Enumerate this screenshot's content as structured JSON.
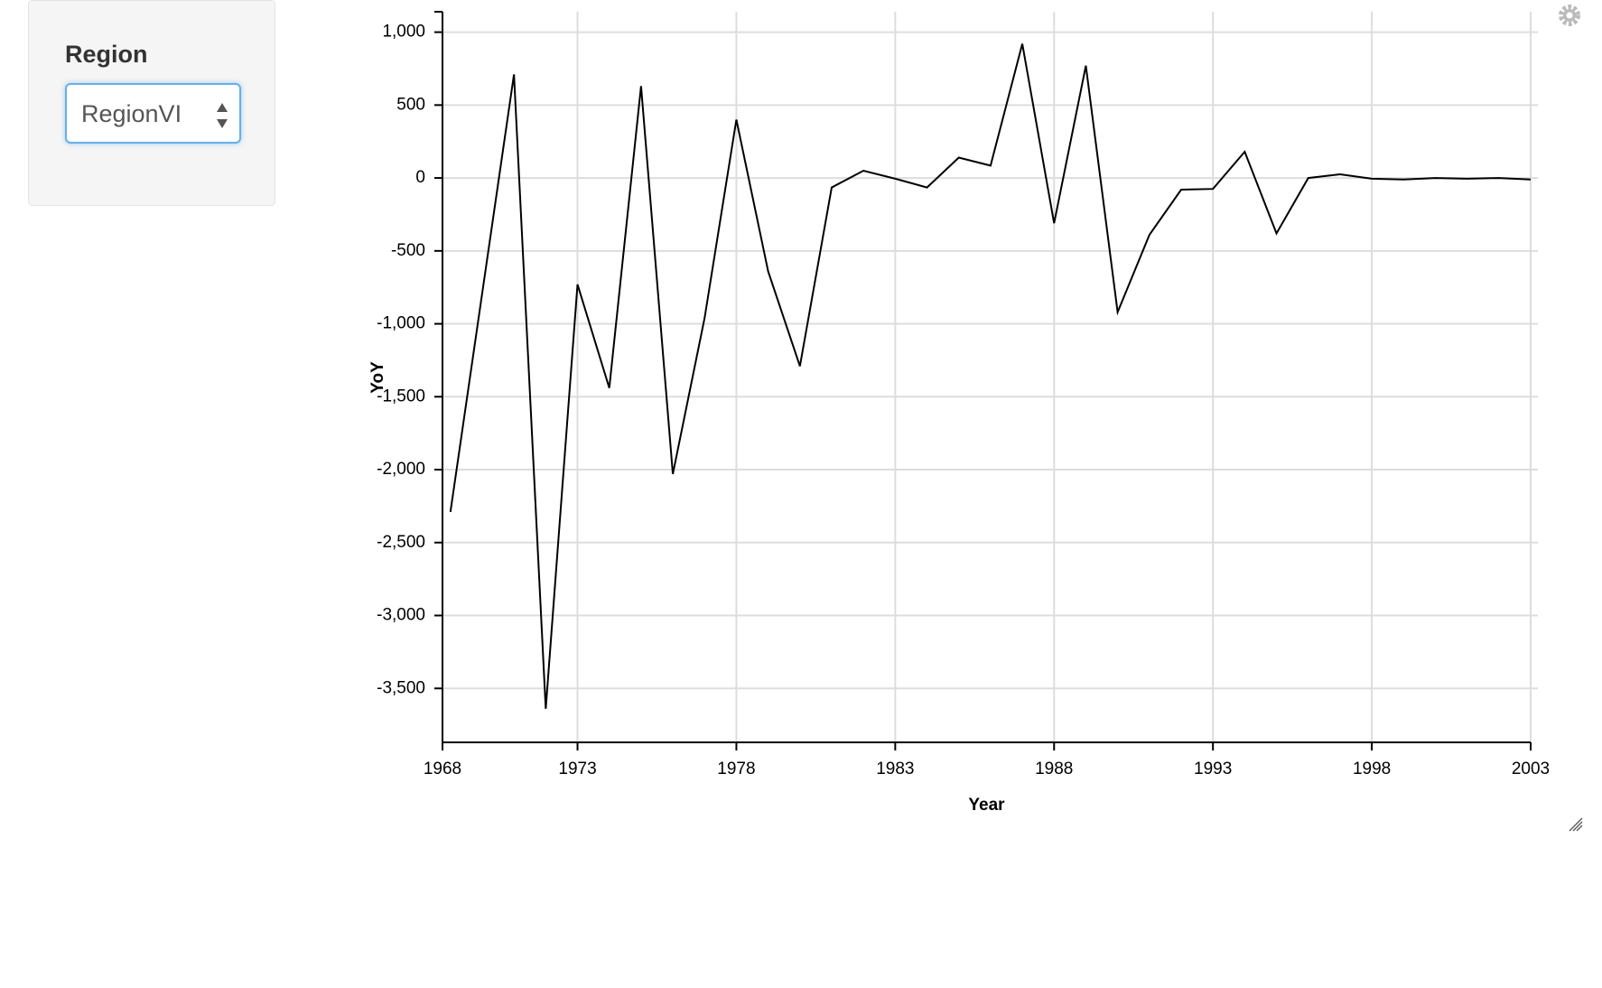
{
  "sidebar": {
    "label": "Region",
    "select_value": "RegionVI"
  },
  "chart_data": {
    "type": "line",
    "xlabel": "Year",
    "ylabel": "YoY",
    "x": [
      1969,
      1970,
      1971,
      1972,
      1973,
      1974,
      1975,
      1976,
      1977,
      1978,
      1979,
      1980,
      1981,
      1982,
      1983,
      1984,
      1985,
      1986,
      1987,
      1988,
      1989,
      1990,
      1991,
      1992,
      1993,
      1994,
      1995,
      1996,
      1997,
      1998,
      1999,
      2000,
      2001,
      2002,
      2003
    ],
    "values": [
      -2290,
      -790,
      710,
      -3640,
      -730,
      -1440,
      630,
      -2030,
      -960,
      400,
      -640,
      -1290,
      -65,
      50,
      -5,
      -65,
      140,
      85,
      920,
      -310,
      770,
      -920,
      -390,
      -80,
      -75,
      180,
      -380,
      0,
      25,
      -5,
      -10,
      0,
      -5,
      0,
      -10
    ],
    "color": "#000000",
    "xlim": [
      1968.75,
      2003
    ],
    "xticks": [
      {
        "value": 1968.75,
        "label": "1968"
      },
      1973,
      1978,
      1983,
      1988,
      1993,
      1998,
      2003
    ],
    "ylim": [
      -3870,
      1140
    ],
    "yticks": [
      {
        "value": 1000,
        "label": "1,000"
      },
      500,
      0,
      -500,
      {
        "value": -1000,
        "label": "-1,000"
      },
      {
        "value": -1500,
        "label": "-1,500"
      },
      {
        "value": -2000,
        "label": "-2,000"
      },
      {
        "value": -2500,
        "label": "-2,500"
      },
      {
        "value": -3000,
        "label": "-3,000"
      },
      {
        "value": -3500,
        "label": "-3,500"
      }
    ],
    "grid": true
  }
}
